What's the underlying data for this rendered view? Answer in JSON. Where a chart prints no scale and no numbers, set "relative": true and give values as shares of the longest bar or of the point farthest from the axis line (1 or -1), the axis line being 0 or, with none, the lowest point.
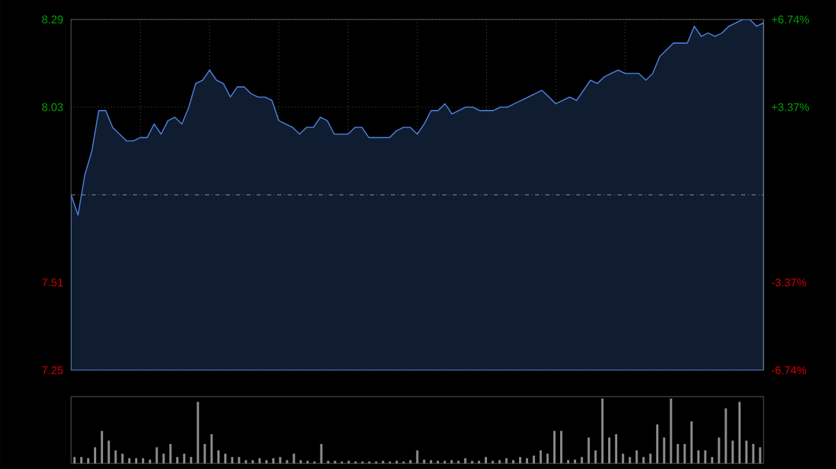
{
  "chart_data": [
    {
      "type": "area",
      "color": "#4a7fd8",
      "categories": [
        null,
        null,
        null,
        null,
        null,
        null,
        null,
        null,
        null,
        null,
        null,
        null,
        null,
        null,
        null,
        null,
        null,
        null,
        null,
        null,
        null,
        null,
        null,
        null,
        null,
        null,
        null,
        null,
        null,
        null,
        null,
        null,
        null,
        null,
        null,
        null,
        null,
        null,
        null,
        null,
        null,
        null,
        null,
        null,
        null,
        null,
        null,
        null,
        null,
        null,
        null,
        null,
        null,
        null,
        null,
        null,
        null,
        null,
        null,
        null,
        null,
        null,
        null,
        null,
        null,
        null,
        null,
        null,
        null,
        null,
        null,
        null,
        null,
        null,
        null,
        null,
        null,
        null,
        null,
        null,
        null,
        null,
        null,
        null,
        null,
        null,
        null,
        null,
        null,
        null,
        null,
        null,
        null,
        null,
        null,
        null,
        null,
        null,
        null,
        null,
        null
      ],
      "values": [
        7.77,
        7.71,
        7.83,
        7.9,
        8.02,
        8.02,
        7.97,
        7.95,
        7.93,
        7.93,
        7.94,
        7.94,
        7.98,
        7.95,
        7.99,
        8.0,
        7.98,
        8.03,
        8.1,
        8.11,
        8.14,
        8.11,
        8.1,
        8.06,
        8.09,
        8.09,
        8.07,
        8.06,
        8.06,
        8.05,
        7.99,
        7.98,
        7.97,
        7.95,
        7.97,
        7.97,
        8.0,
        7.99,
        7.95,
        7.95,
        7.95,
        7.97,
        7.97,
        7.94,
        7.94,
        7.94,
        7.94,
        7.96,
        7.97,
        7.97,
        7.95,
        7.98,
        8.02,
        8.02,
        8.04,
        8.01,
        8.02,
        8.03,
        8.03,
        8.02,
        8.02,
        8.02,
        8.03,
        8.03,
        8.04,
        8.05,
        8.06,
        8.07,
        8.08,
        8.06,
        8.04,
        8.05,
        8.06,
        8.05,
        8.08,
        8.11,
        8.1,
        8.12,
        8.13,
        8.14,
        8.13,
        8.13,
        8.13,
        8.11,
        8.13,
        8.18,
        8.2,
        8.22,
        8.22,
        8.22,
        8.27,
        8.24,
        8.25,
        8.24,
        8.25,
        8.27,
        8.28,
        8.29,
        8.29,
        8.27,
        8.28
      ],
      "ylim": [
        7.25,
        8.29
      ],
      "yticks": [
        7.25,
        7.51,
        8.03,
        8.29
      ],
      "y2lim": [
        -6.74,
        6.74
      ],
      "y2ticks": [
        {
          "value": -6.74,
          "label": "-6.74%"
        },
        {
          "value": -3.37,
          "label": "-3.37%"
        },
        {
          "value": 3.37,
          "label": "+3.37%"
        },
        {
          "value": 6.74,
          "label": "+6.74%"
        }
      ],
      "ref_lines": [
        {
          "axis": "y",
          "value": 7.77,
          "color": "#9a9a9a",
          "line_style": "dashed"
        }
      ],
      "grid": true,
      "tick_labels": "y"
    },
    {
      "type": "bar",
      "relative": true,
      "color": "#8c8c8c",
      "tick_labels": false,
      "categories": [
        null,
        null,
        null,
        null,
        null,
        null,
        null,
        null,
        null,
        null,
        null,
        null,
        null,
        null,
        null,
        null,
        null,
        null,
        null,
        null,
        null,
        null,
        null,
        null,
        null,
        null,
        null,
        null,
        null,
        null,
        null,
        null,
        null,
        null,
        null,
        null,
        null,
        null,
        null,
        null,
        null,
        null,
        null,
        null,
        null,
        null,
        null,
        null,
        null,
        null,
        null,
        null,
        null,
        null,
        null,
        null,
        null,
        null,
        null,
        null,
        null,
        null,
        null,
        null,
        null,
        null,
        null,
        null,
        null,
        null,
        null,
        null,
        null,
        null,
        null,
        null,
        null,
        null,
        null,
        null,
        null,
        null,
        null,
        null,
        null,
        null,
        null,
        null,
        null,
        null,
        null,
        null,
        null,
        null,
        null,
        null,
        null,
        null,
        null,
        null,
        null
      ],
      "values": [
        0.1,
        0.1,
        0.08,
        0.25,
        0.5,
        0.35,
        0.2,
        0.15,
        0.08,
        0.08,
        0.08,
        0.06,
        0.25,
        0.15,
        0.3,
        0.1,
        0.15,
        0.1,
        0.95,
        0.3,
        0.45,
        0.2,
        0.15,
        0.1,
        0.1,
        0.05,
        0.05,
        0.08,
        0.05,
        0.08,
        0.1,
        0.05,
        0.15,
        0.05,
        0.04,
        0.03,
        0.3,
        0.04,
        0.04,
        0.03,
        0.04,
        0.03,
        0.03,
        0.03,
        0.03,
        0.04,
        0.03,
        0.04,
        0.03,
        0.05,
        0.2,
        0.06,
        0.05,
        0.04,
        0.04,
        0.05,
        0.04,
        0.08,
        0.04,
        0.04,
        0.1,
        0.04,
        0.05,
        0.08,
        0.05,
        0.1,
        0.08,
        0.12,
        0.2,
        0.15,
        0.5,
        0.5,
        0.05,
        0.06,
        0.1,
        0.4,
        0.2,
        1.0,
        0.4,
        0.45,
        0.15,
        0.1,
        0.2,
        0.1,
        0.15,
        0.6,
        0.4,
        1.0,
        0.3,
        0.3,
        0.65,
        0.2,
        0.2,
        0.1,
        0.4,
        0.85,
        0.35,
        0.95,
        0.35,
        0.3,
        0.25
      ]
    }
  ]
}
